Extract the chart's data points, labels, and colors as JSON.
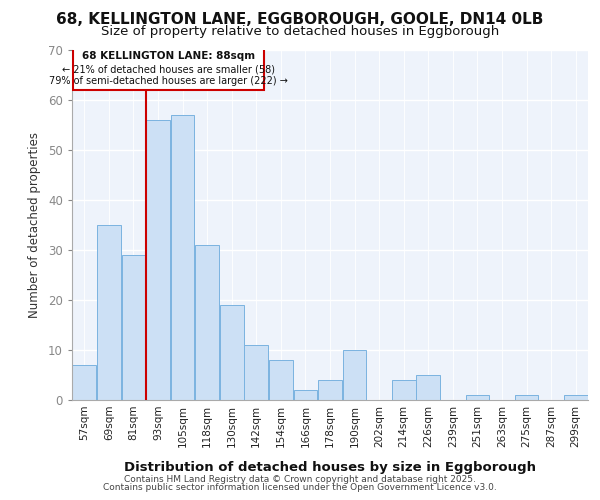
{
  "title_line1": "68, KELLINGTON LANE, EGGBOROUGH, GOOLE, DN14 0LB",
  "title_line2": "Size of property relative to detached houses in Eggborough",
  "xlabel": "Distribution of detached houses by size in Eggborough",
  "ylabel": "Number of detached properties",
  "categories": [
    "57sqm",
    "69sqm",
    "81sqm",
    "93sqm",
    "105sqm",
    "118sqm",
    "130sqm",
    "142sqm",
    "154sqm",
    "166sqm",
    "178sqm",
    "190sqm",
    "202sqm",
    "214sqm",
    "226sqm",
    "239sqm",
    "251sqm",
    "263sqm",
    "275sqm",
    "287sqm",
    "299sqm"
  ],
  "values": [
    7,
    35,
    29,
    56,
    57,
    31,
    19,
    11,
    8,
    2,
    4,
    10,
    0,
    4,
    5,
    0,
    1,
    0,
    1,
    0,
    1
  ],
  "bar_color": "#cce0f5",
  "bar_edge_color": "#7ab3e0",
  "annotation_text_line1": "68 KELLINGTON LANE: 88sqm",
  "annotation_text_line2": "← 21% of detached houses are smaller (58)",
  "annotation_text_line3": "79% of semi-detached houses are larger (222) →",
  "vline_color": "#cc0000",
  "ylim": [
    0,
    70
  ],
  "yticks": [
    0,
    10,
    20,
    30,
    40,
    50,
    60,
    70
  ],
  "background_color": "#ffffff",
  "plot_bg_color": "#eef3fb",
  "grid_color": "#ffffff",
  "footer_line1": "Contains HM Land Registry data © Crown copyright and database right 2025.",
  "footer_line2": "Contains public sector information licensed under the Open Government Licence v3.0."
}
